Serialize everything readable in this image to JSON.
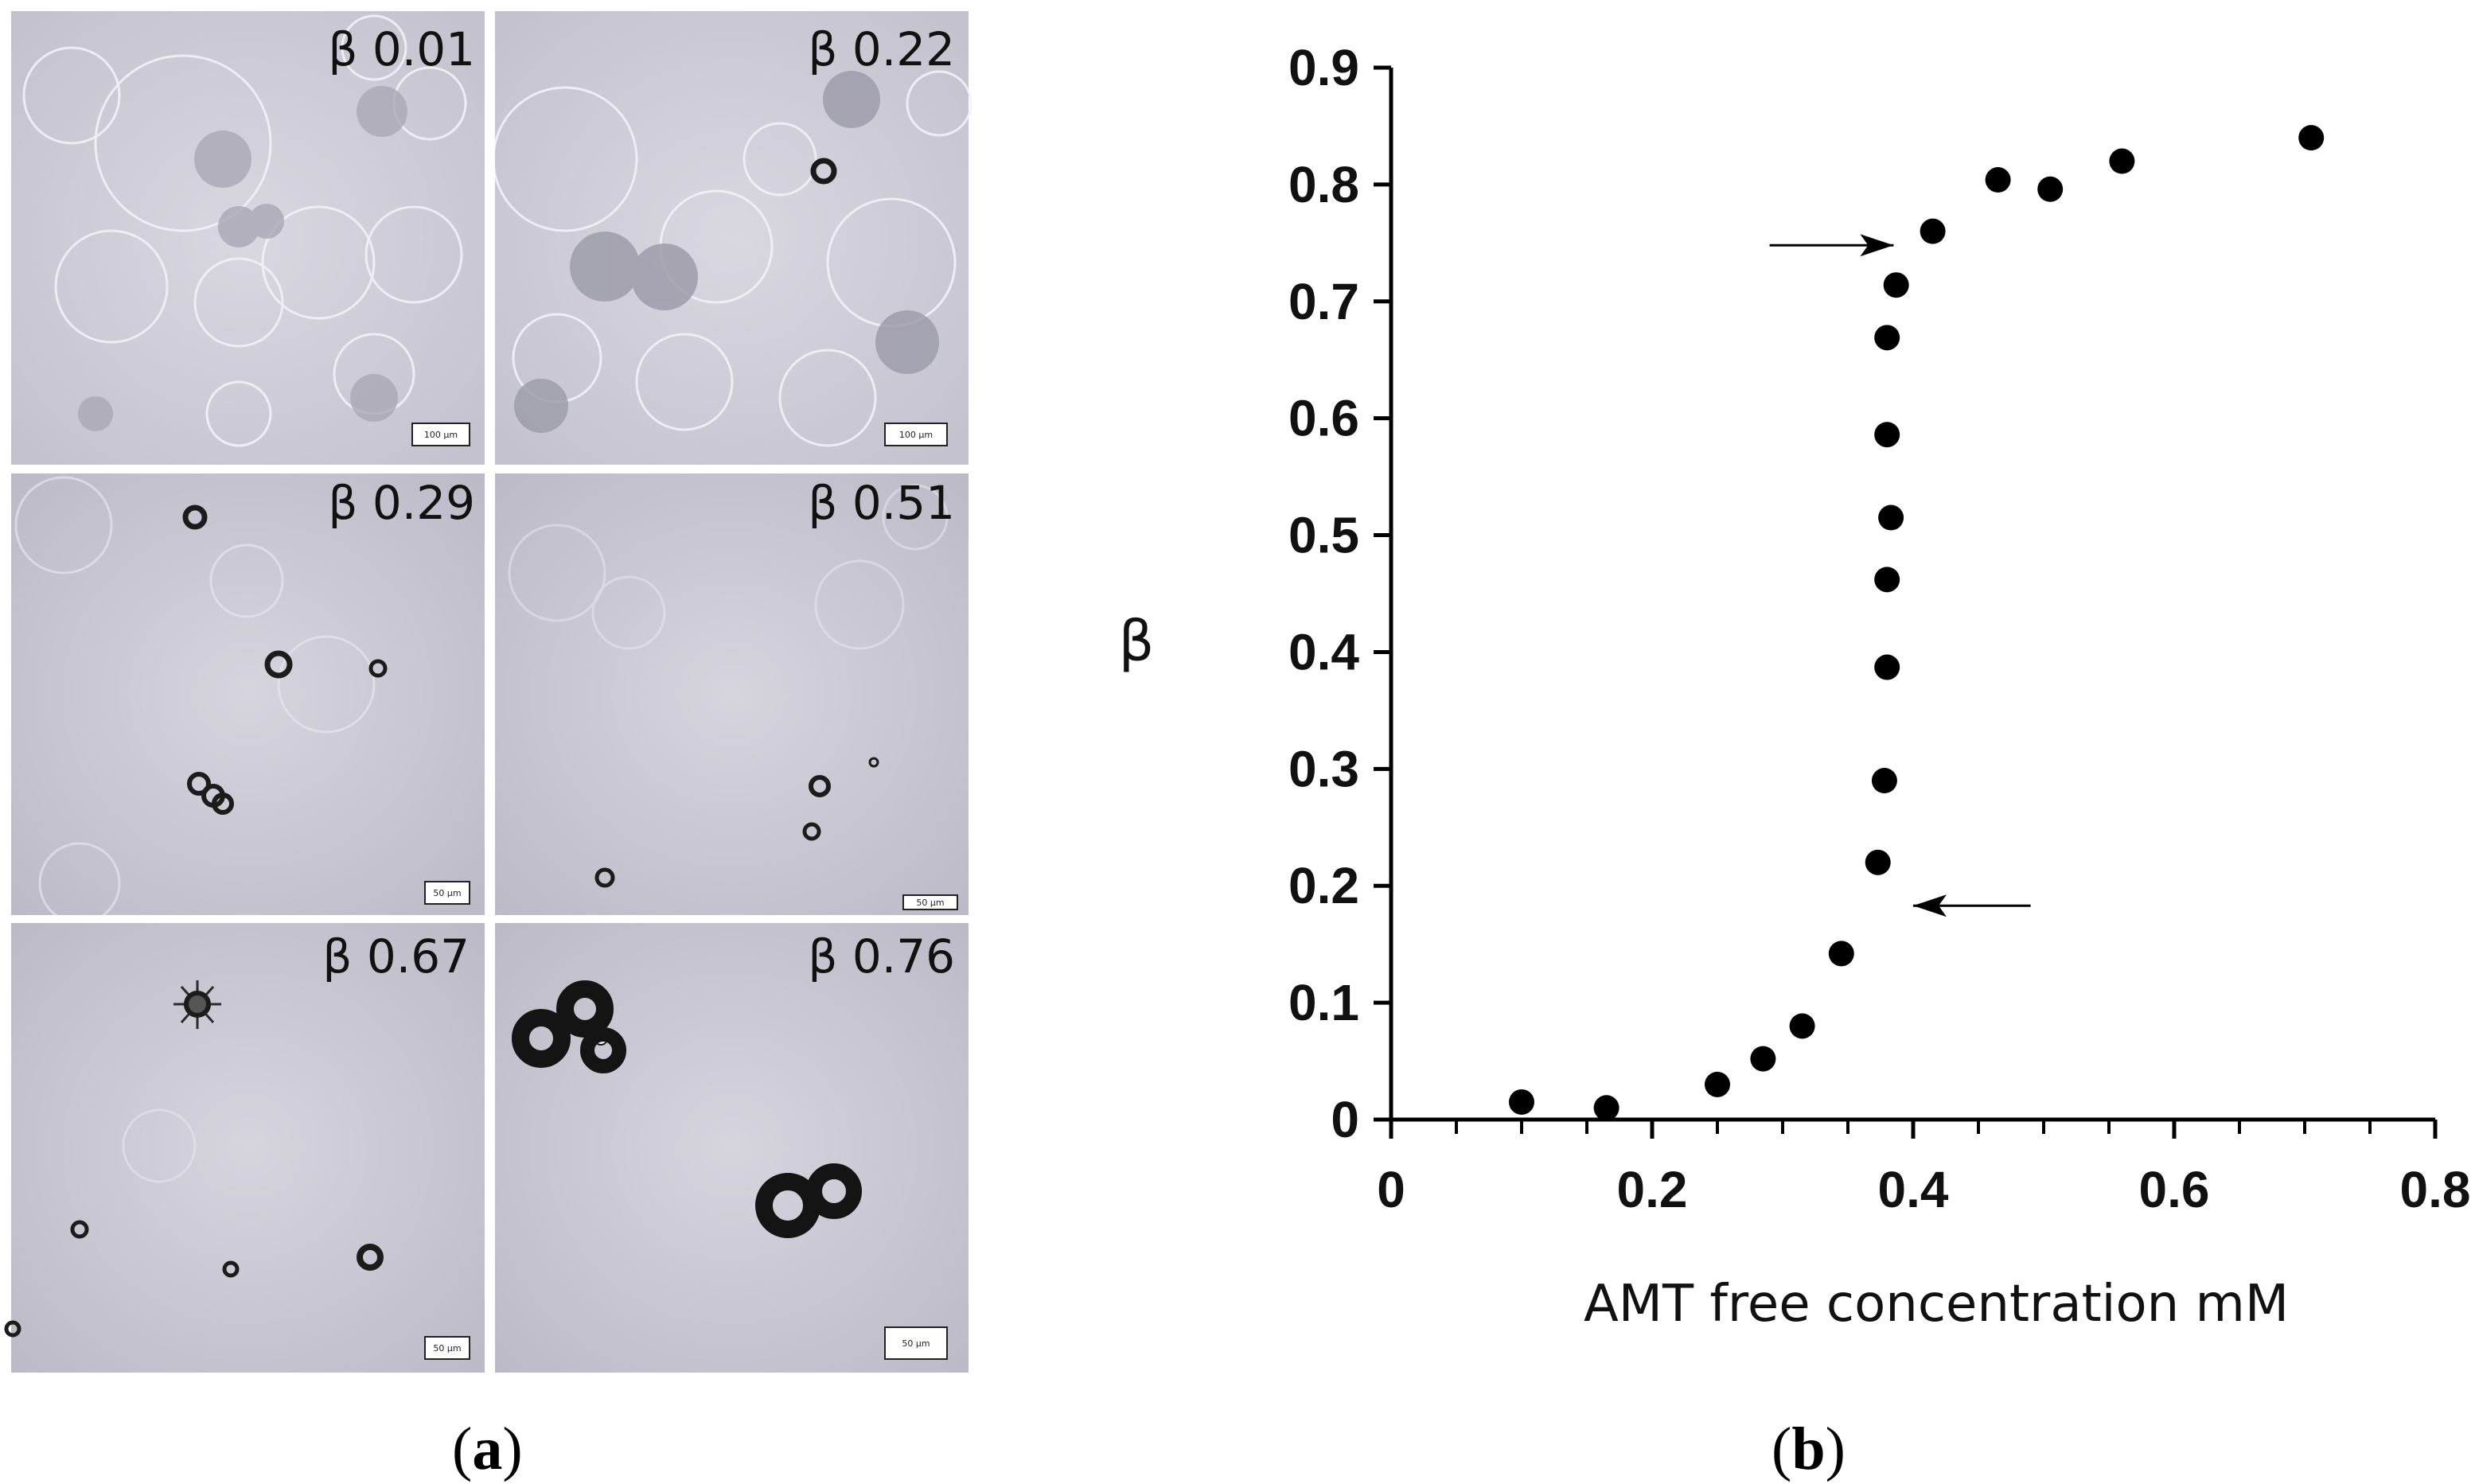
{
  "panel_a": {
    "label_open": "(",
    "label_letter": "a",
    "label_close": ")",
    "images": [
      {
        "beta_label": "β 0.01",
        "scale_bar": "100 μm"
      },
      {
        "beta_label": "β 0.22",
        "scale_bar": "100 μm"
      },
      {
        "beta_label": "β 0.29",
        "scale_bar": "50 μm"
      },
      {
        "beta_label": "β 0.51",
        "scale_bar": "50 μm"
      },
      {
        "beta_label": "β 0.67",
        "scale_bar": "50 μm"
      },
      {
        "beta_label": "β 0.76",
        "scale_bar": "50 μm"
      }
    ]
  },
  "panel_b": {
    "label_open": "(",
    "label_letter": "b",
    "label_close": ")"
  },
  "chart_data": {
    "type": "scatter",
    "xlabel": "AMT free concentration mM",
    "ylabel": "β",
    "xlim": [
      0,
      0.8
    ],
    "ylim": [
      0,
      0.9
    ],
    "xticks": [
      "0",
      "0.2",
      "0.4",
      "0.6",
      "0.8"
    ],
    "yticks": [
      "0",
      "0.1",
      "0.2",
      "0.3",
      "0.4",
      "0.5",
      "0.6",
      "0.7",
      "0.8",
      "0.9"
    ],
    "grid": false,
    "points": [
      {
        "x": 0.1,
        "y": 0.015
      },
      {
        "x": 0.165,
        "y": 0.01
      },
      {
        "x": 0.25,
        "y": 0.03
      },
      {
        "x": 0.285,
        "y": 0.052
      },
      {
        "x": 0.315,
        "y": 0.08
      },
      {
        "x": 0.345,
        "y": 0.142
      },
      {
        "x": 0.373,
        "y": 0.22
      },
      {
        "x": 0.378,
        "y": 0.29
      },
      {
        "x": 0.38,
        "y": 0.387
      },
      {
        "x": 0.38,
        "y": 0.462
      },
      {
        "x": 0.383,
        "y": 0.515
      },
      {
        "x": 0.38,
        "y": 0.586
      },
      {
        "x": 0.38,
        "y": 0.669
      },
      {
        "x": 0.387,
        "y": 0.714
      },
      {
        "x": 0.415,
        "y": 0.76
      },
      {
        "x": 0.465,
        "y": 0.804
      },
      {
        "x": 0.505,
        "y": 0.796
      },
      {
        "x": 0.56,
        "y": 0.82
      },
      {
        "x": 0.705,
        "y": 0.84
      }
    ],
    "annotations": [
      {
        "type": "arrow",
        "direction": "right",
        "x_from": 0.29,
        "x_to": 0.385,
        "y": 0.748
      },
      {
        "type": "arrow",
        "direction": "left",
        "x_from": 0.49,
        "x_to": 0.4,
        "y": 0.183
      }
    ]
  }
}
